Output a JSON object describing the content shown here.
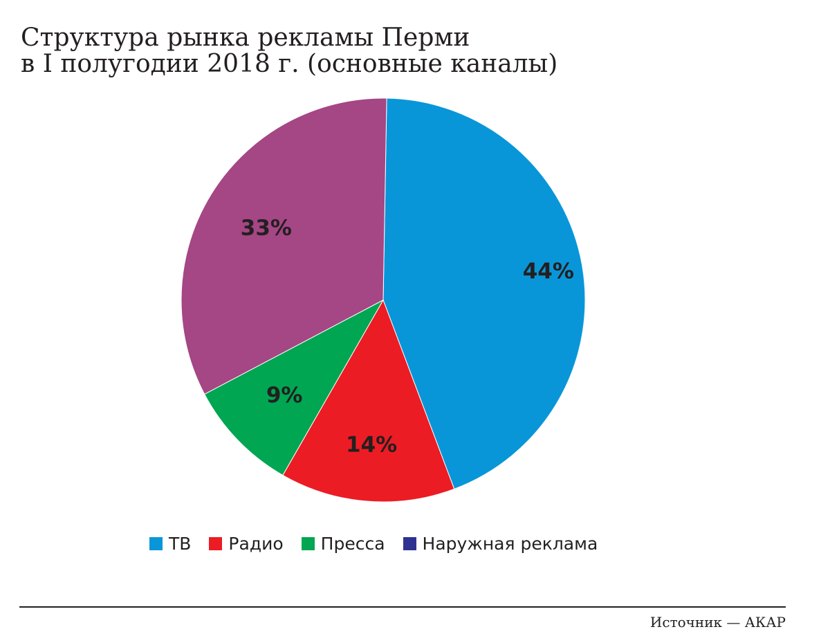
{
  "title": {
    "line1": "Структура рынка рекламы Перми",
    "line2": "в I полугодии 2018 г. (основные каналы)"
  },
  "chart_data": {
    "type": "pie",
    "unit": "%",
    "slices": [
      {
        "name": "ТВ",
        "value": 44,
        "label": "44%",
        "color": "#0996d9"
      },
      {
        "name": "Радио",
        "value": 14,
        "label": "14%",
        "color": "#ec1c24"
      },
      {
        "name": "Пресса",
        "value": 9,
        "label": "9%",
        "color": "#00a651"
      },
      {
        "name": "Наружная реклама",
        "value": 33,
        "label": "33%",
        "color": "#a54685"
      }
    ],
    "legend": [
      {
        "name": "ТВ",
        "color": "#0996d9"
      },
      {
        "name": "Радио",
        "color": "#ec1c24"
      },
      {
        "name": "Пресса",
        "color": "#00a651"
      },
      {
        "name": "Наружная реклама",
        "color": "#2e3192"
      }
    ],
    "legend_placement": "bottom"
  },
  "source": "Источник — АКАР"
}
